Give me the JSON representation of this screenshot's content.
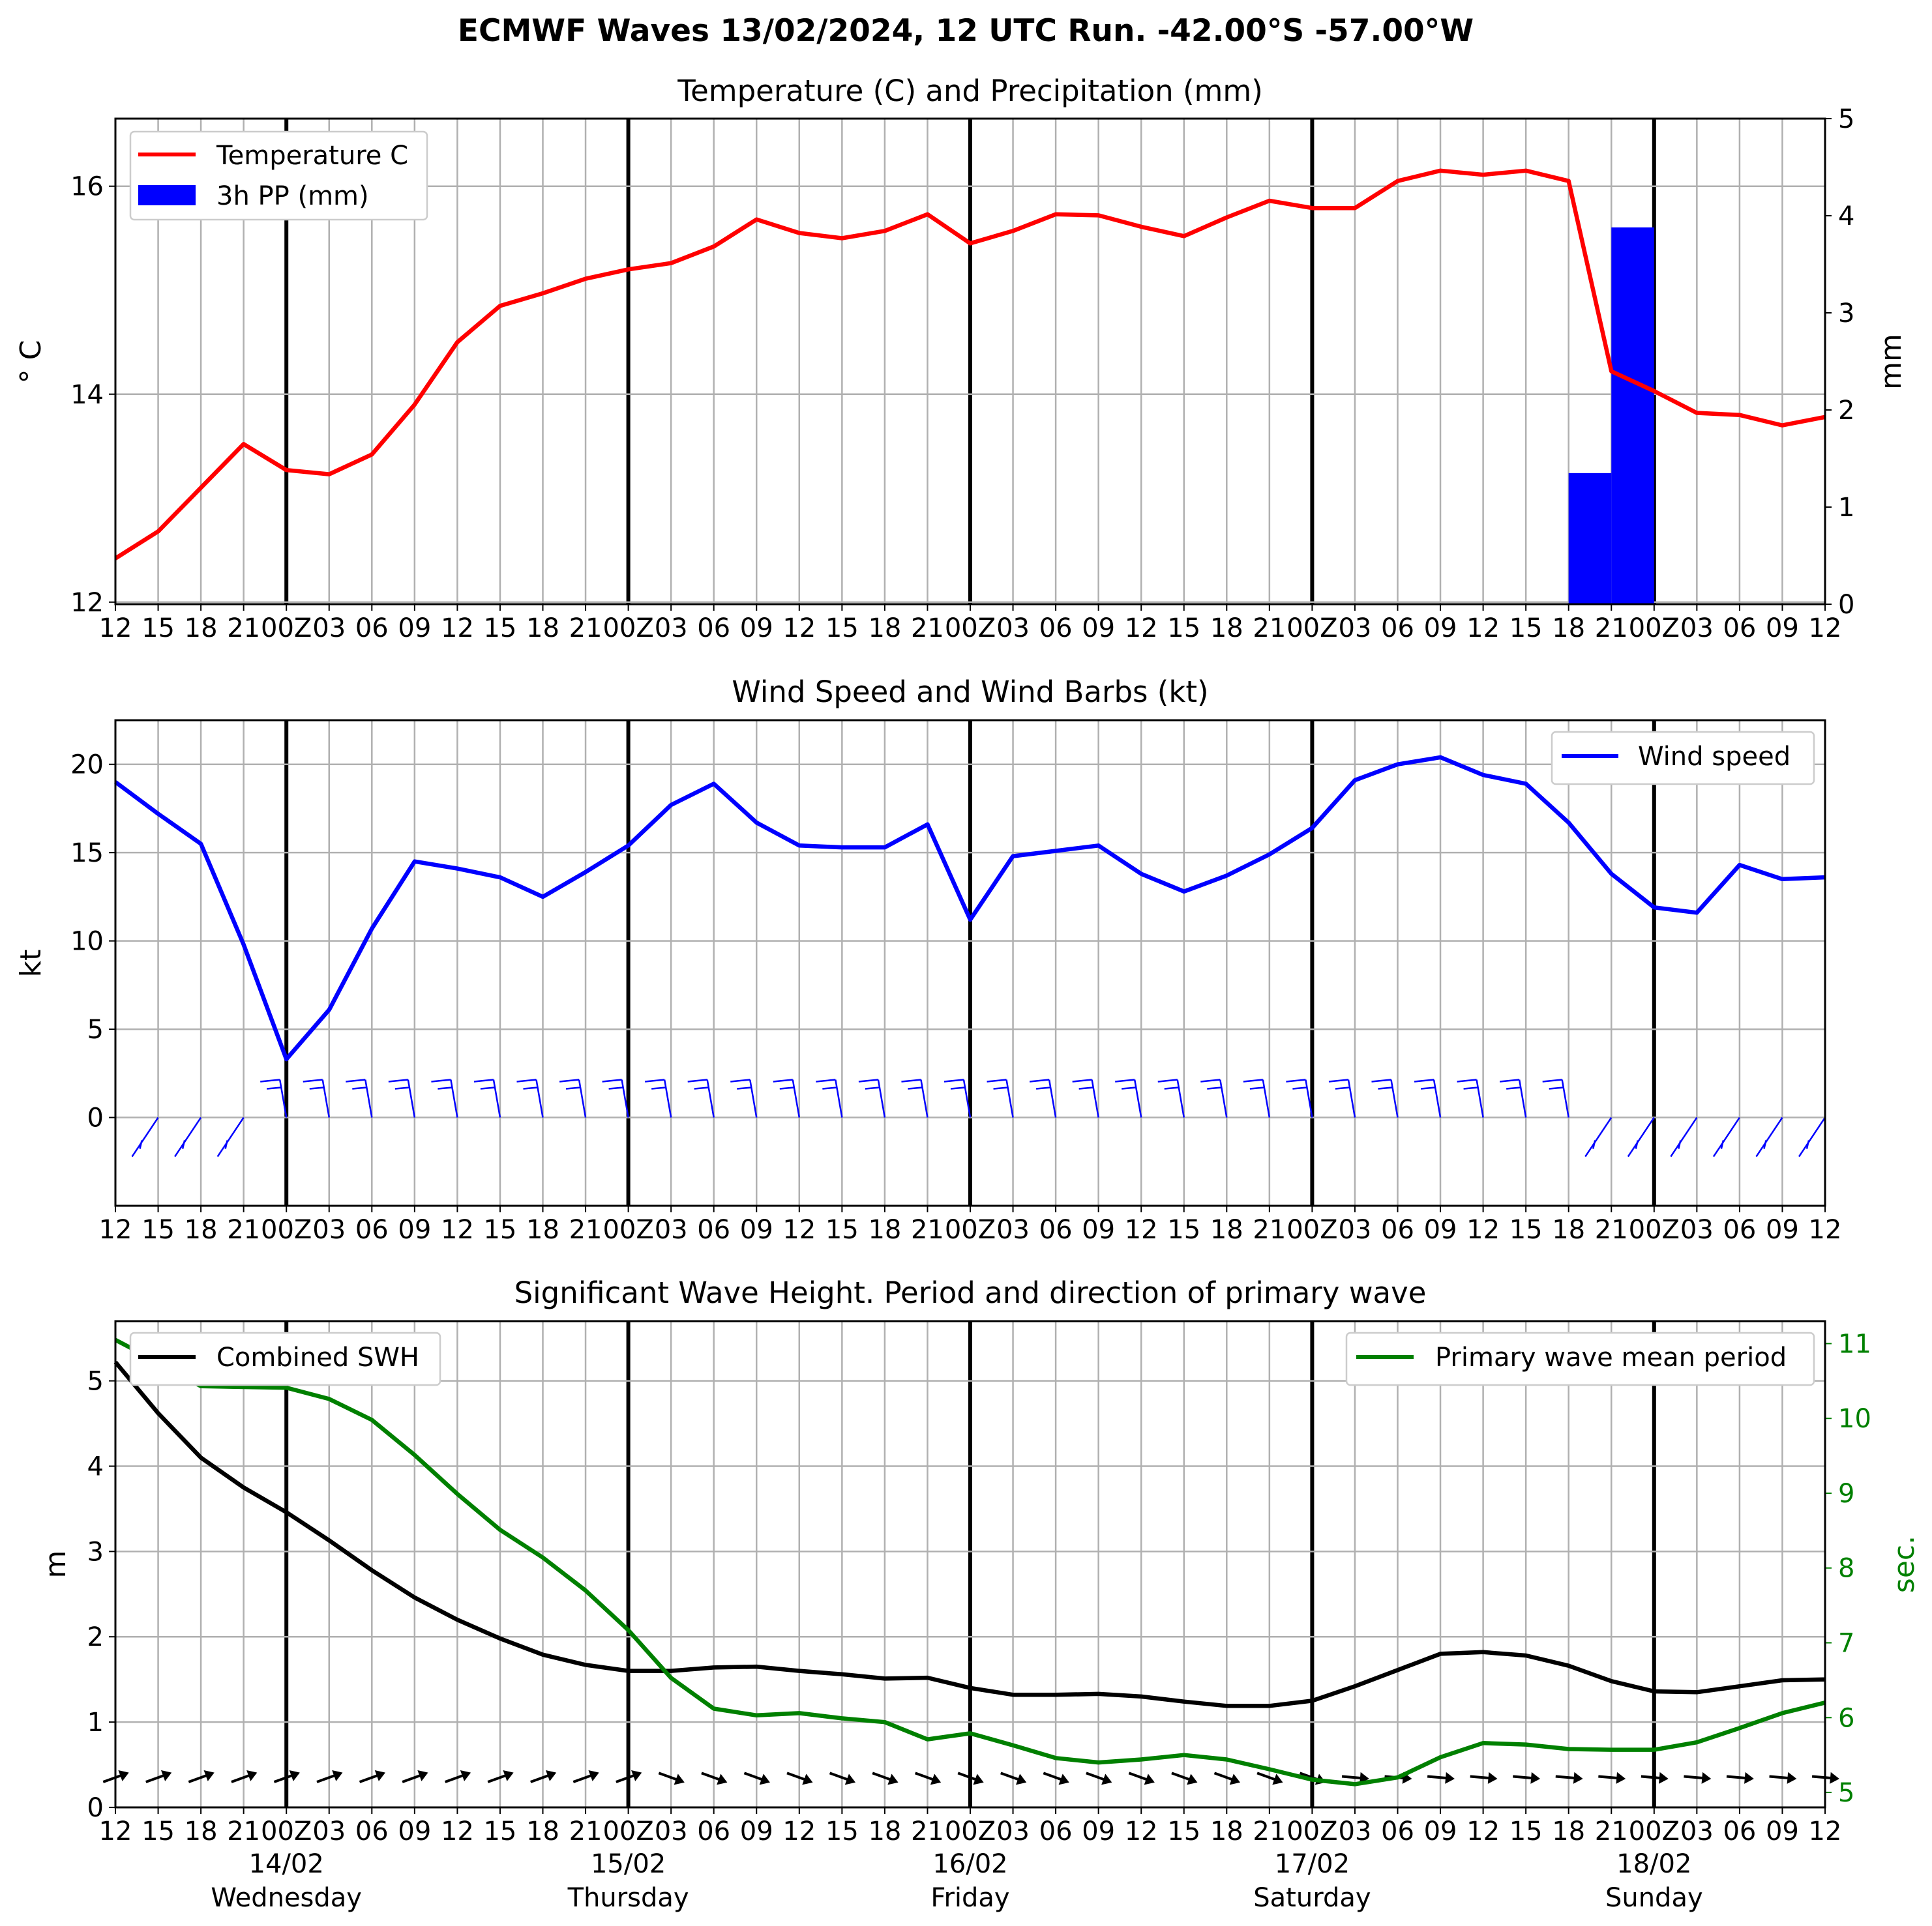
{
  "figure_title": "ECMWF Waves 13/02/2024, 12 UTC Run. -42.00°S -57.00°W",
  "x_tick_labels": [
    "12",
    "15",
    "18",
    "21",
    "00Z",
    "03",
    "06",
    "09",
    "12",
    "15",
    "18",
    "21",
    "00Z",
    "03",
    "06",
    "09",
    "12",
    "15",
    "18",
    "21",
    "00Z",
    "03",
    "06",
    "09",
    "12",
    "15",
    "18",
    "21",
    "00Z",
    "03",
    "06",
    "09",
    "12",
    "15",
    "18",
    "21",
    "00Z",
    "03",
    "06",
    "09",
    "12"
  ],
  "day_labels": [
    {
      "date": "14/02",
      "weekday": "Wednesday"
    },
    {
      "date": "15/02",
      "weekday": "Thursday"
    },
    {
      "date": "16/02",
      "weekday": "Friday"
    },
    {
      "date": "17/02",
      "weekday": "Saturday"
    },
    {
      "date": "18/02",
      "weekday": "Sunday"
    }
  ],
  "colors": {
    "temperature": "#ff0000",
    "precipitation": "#0000ff",
    "wind": "#0000ff",
    "swh": "#000000",
    "period": "#008000",
    "grid": "#b0b0b0"
  },
  "chart_data": [
    {
      "type": "line",
      "title": "Temperature (C) and Precipitation (mm)",
      "x_unit": "hours from 13/02/2024 12 UTC",
      "ylabel": "$^\\circ$C",
      "ylabel_display": "° C",
      "ylabel_right": "mm",
      "ylim": [
        11.98,
        16.65
      ],
      "ylim_right": [
        0,
        5
      ],
      "yticks": [
        12,
        14,
        16
      ],
      "yticks_right": [
        0,
        1,
        2,
        3,
        4,
        5
      ],
      "grid": true,
      "legend": "upper left",
      "series": [
        {
          "name": "Temperature C",
          "kind": "line",
          "axis": "left",
          "values": [
            12.42,
            12.68,
            13.1,
            13.52,
            13.27,
            13.23,
            13.42,
            13.9,
            14.5,
            14.85,
            14.97,
            15.11,
            15.2,
            15.26,
            15.42,
            15.68,
            15.55,
            15.5,
            15.57,
            15.73,
            15.45,
            15.57,
            15.73,
            15.72,
            15.61,
            15.52,
            15.7,
            15.86,
            15.79,
            15.79,
            16.05,
            16.15,
            16.11,
            16.15,
            16.05,
            14.22,
            14.03,
            13.82,
            13.8,
            13.7,
            13.78
          ]
        },
        {
          "name": "3h PP (mm)",
          "kind": "bar",
          "axis": "right",
          "values": [
            0,
            0,
            0,
            0,
            0,
            0,
            0,
            0,
            0,
            0,
            0,
            0,
            0,
            0,
            0,
            0,
            0,
            0,
            0,
            0,
            0,
            0,
            0,
            0,
            0,
            0,
            0,
            0,
            0,
            0,
            0,
            0,
            0,
            0,
            0,
            1.35,
            3.88,
            0,
            0,
            0,
            0
          ]
        }
      ]
    },
    {
      "type": "line",
      "title": "Wind Speed and Wind Barbs (kt)",
      "x_unit": "hours from 13/02/2024 12 UTC",
      "ylabel": "kt",
      "ylim": [
        -5,
        22.5
      ],
      "yticks": [
        0,
        5,
        10,
        15,
        20
      ],
      "grid": true,
      "legend": "upper right",
      "series": [
        {
          "name": "Wind speed",
          "values": [
            19.0,
            17.2,
            15.5,
            9.8,
            3.3,
            6.1,
            10.7,
            14.5,
            14.1,
            13.6,
            12.5,
            13.9,
            15.4,
            17.7,
            18.9,
            16.7,
            15.4,
            15.3,
            15.3,
            16.6,
            11.2,
            14.8,
            15.1,
            15.4,
            13.8,
            12.8,
            13.7,
            14.9,
            16.4,
            19.1,
            20.0,
            20.4,
            19.4,
            18.9,
            16.7,
            13.8,
            11.9,
            11.6,
            14.3,
            13.5,
            13.6
          ]
        }
      ],
      "barbs": {
        "description": "wind barbs along the x axis, blue",
        "direction_note": "barbs shown above zero line for hours 21 UTC 13/02 through 18 UTC 17/02, below zero line otherwise"
      }
    },
    {
      "type": "line",
      "title": "Significant Wave Height. Period and direction of primary wave",
      "x_unit": "hours from 13/02/2024 12 UTC",
      "ylabel": "m",
      "ylabel_right": "sec.",
      "ylim": [
        0,
        5.7
      ],
      "ylim_right": [
        4.8,
        11.3
      ],
      "yticks": [
        0,
        1,
        2,
        3,
        4,
        5
      ],
      "yticks_right": [
        5,
        6,
        7,
        8,
        9,
        10,
        11
      ],
      "grid": true,
      "series": [
        {
          "name": "Combined SWH",
          "axis": "left",
          "legend": "upper left",
          "values": [
            5.22,
            4.62,
            4.1,
            3.75,
            3.46,
            3.13,
            2.78,
            2.46,
            2.2,
            1.98,
            1.79,
            1.67,
            1.6,
            1.6,
            1.64,
            1.65,
            1.6,
            1.56,
            1.51,
            1.52,
            1.4,
            1.32,
            1.32,
            1.33,
            1.3,
            1.24,
            1.19,
            1.19,
            1.25,
            1.42,
            1.61,
            1.8,
            1.82,
            1.78,
            1.66,
            1.48,
            1.36,
            1.35,
            1.42,
            1.49,
            1.5
          ]
        },
        {
          "name": "Primary wave mean period",
          "axis": "right",
          "legend": "upper right",
          "values": [
            11.05,
            10.75,
            10.43,
            10.42,
            10.41,
            10.26,
            9.98,
            9.51,
            8.99,
            8.51,
            8.14,
            7.7,
            7.17,
            6.53,
            6.12,
            6.03,
            6.06,
            5.99,
            5.94,
            5.71,
            5.79,
            5.63,
            5.46,
            5.4,
            5.44,
            5.5,
            5.44,
            5.31,
            5.17,
            5.11,
            5.2,
            5.47,
            5.66,
            5.64,
            5.58,
            5.57,
            5.57,
            5.67,
            5.86,
            6.06,
            6.2
          ]
        }
      ],
      "direction_arrows": {
        "description": "black arrows near y=0.35 m showing primary wave direction at each 3-hour step"
      }
    }
  ]
}
